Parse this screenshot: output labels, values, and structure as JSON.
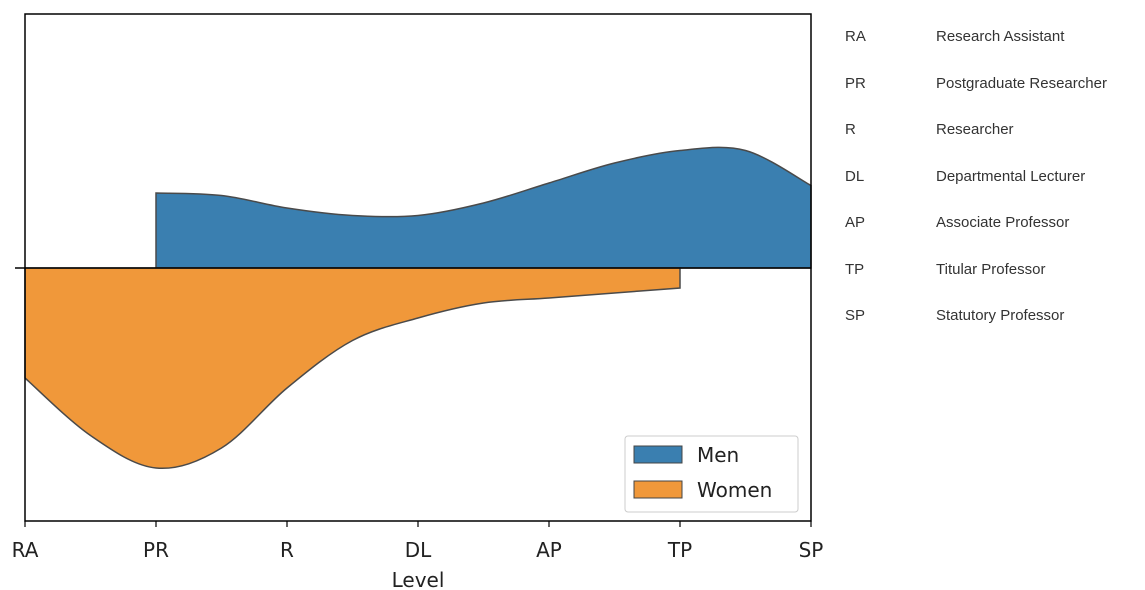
{
  "chart_data": {
    "type": "area",
    "xlabel": "Level",
    "categories": [
      "RA",
      "PR",
      "R",
      "DL",
      "AP",
      "TP",
      "SP"
    ],
    "series": [
      {
        "name": "Men",
        "color": "#3a7fb0",
        "direction": "up",
        "x": [
          1,
          1.5,
          2,
          2.5,
          3,
          3.5,
          4,
          4.5,
          5,
          5.5,
          6
        ],
        "values": [
          0.3,
          0.29,
          0.24,
          0.21,
          0.21,
          0.26,
          0.34,
          0.42,
          0.47,
          0.47,
          0.33
        ]
      },
      {
        "name": "Women",
        "color": "#f0983a",
        "direction": "down",
        "x": [
          0,
          0.5,
          1,
          1.5,
          2,
          2.5,
          3,
          3.5,
          4,
          4.5,
          5
        ],
        "values": [
          0.44,
          0.67,
          0.8,
          0.72,
          0.48,
          0.29,
          0.2,
          0.14,
          0.12,
          0.1,
          0.08
        ]
      }
    ],
    "legend": {
      "position": "bottom-right",
      "entries": [
        "Men",
        "Women"
      ]
    },
    "grid": false
  },
  "glossary": [
    {
      "abbr": "RA",
      "label": "Research Assistant"
    },
    {
      "abbr": "PR",
      "label": "Postgraduate Researcher"
    },
    {
      "abbr": "R",
      "label": "Researcher"
    },
    {
      "abbr": "DL",
      "label": "Departmental Lecturer"
    },
    {
      "abbr": "AP",
      "label": "Associate Professor"
    },
    {
      "abbr": "TP",
      "label": "Titular Professor"
    },
    {
      "abbr": "SP",
      "label": "Statutory Professor"
    }
  ]
}
